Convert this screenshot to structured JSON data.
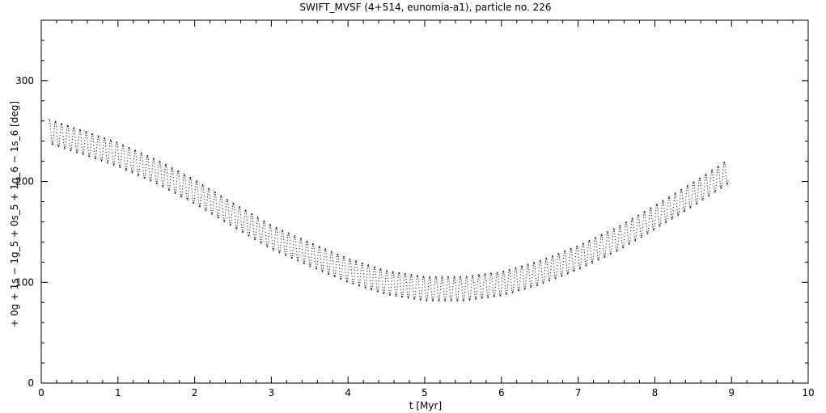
{
  "chart_data": {
    "type": "scatter",
    "title": "SWIFT_MVSF (4+514, eunomia-a1), particle no. 226",
    "xlabel": "t [Myr]",
    "ylabel": "+ 0g + 1s − 1g_5 + 0s_5 + 1g_6 − 1s_6 [deg]",
    "xlim": [
      0,
      10
    ],
    "ylim": [
      0,
      360
    ],
    "x_ticks": [
      0,
      1,
      2,
      3,
      4,
      5,
      6,
      7,
      8,
      9,
      10
    ],
    "x_tick_labels": [
      "0",
      "1",
      "2",
      "3",
      "4",
      "5",
      "6",
      "7",
      "8",
      "9",
      "10"
    ],
    "y_ticks": [
      0,
      100,
      200,
      300
    ],
    "y_tick_labels": [
      "0",
      "100",
      "200",
      "300"
    ],
    "grid": false,
    "color": "#000000",
    "trend": {
      "x": [
        0.1,
        0.5,
        1.0,
        1.5,
        2.0,
        2.5,
        3.0,
        3.5,
        4.0,
        4.5,
        5.0,
        5.5,
        6.0,
        6.5,
        7.0,
        7.5,
        8.0,
        8.5,
        8.95
      ],
      "y": [
        250,
        240,
        227,
        210,
        190,
        167,
        145,
        128,
        112,
        100,
        94,
        94,
        99,
        110,
        125,
        143,
        165,
        188,
        210
      ]
    },
    "oscillation_amplitude_deg": 12,
    "oscillation_period_myr": 0.08
  }
}
